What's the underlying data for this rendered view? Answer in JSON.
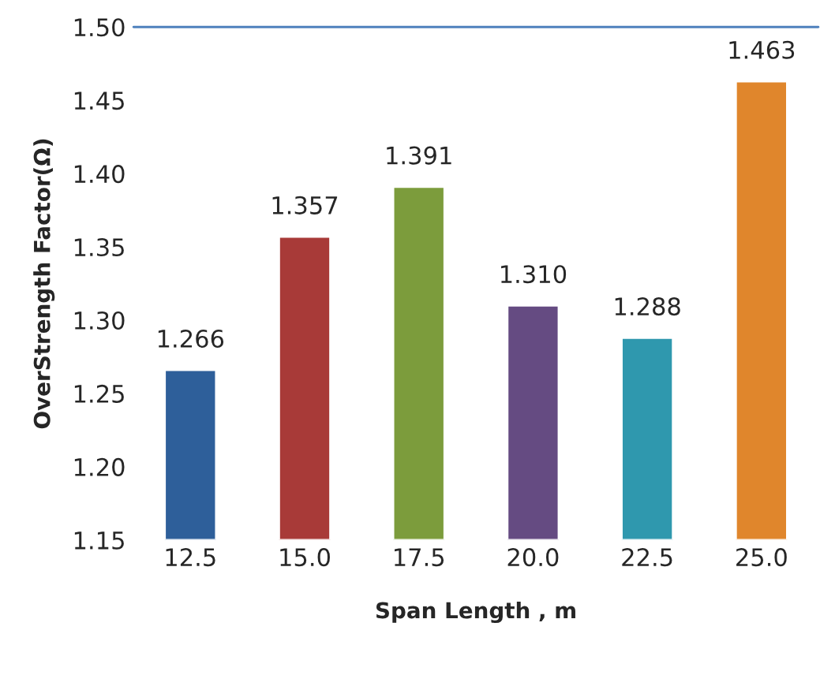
{
  "chart_data": {
    "type": "bar",
    "xlabel": "Span Length , m",
    "ylabel": "OverStrength Factor(Ω)",
    "categories": [
      "12.5",
      "15.0",
      "17.5",
      "20.0",
      "22.5",
      "25.0"
    ],
    "values": [
      1.266,
      1.357,
      1.391,
      1.31,
      1.288,
      1.463
    ],
    "value_labels": [
      "1.266",
      "1.357",
      "1.391",
      "1.310",
      "1.288",
      "1.463"
    ],
    "colors": [
      "#2e5f9a",
      "#a83a38",
      "#7c9c3c",
      "#654b82",
      "#2f98ae",
      "#e0862c"
    ],
    "ylim": [
      1.15,
      1.5
    ],
    "yticks": [
      1.15,
      {
        "value": 1.2,
        "label": "1.20"
      },
      1.25,
      {
        "value": 1.3,
        "label": "1.30"
      },
      1.35,
      {
        "value": 1.4,
        "label": "1.40"
      },
      1.45,
      {
        "value": 1.5,
        "label": "1.50"
      }
    ],
    "ref_lines": [
      {
        "axis": "y",
        "value": 1.5,
        "color": "#4f81bd"
      }
    ],
    "grid": false,
    "legend": false
  }
}
